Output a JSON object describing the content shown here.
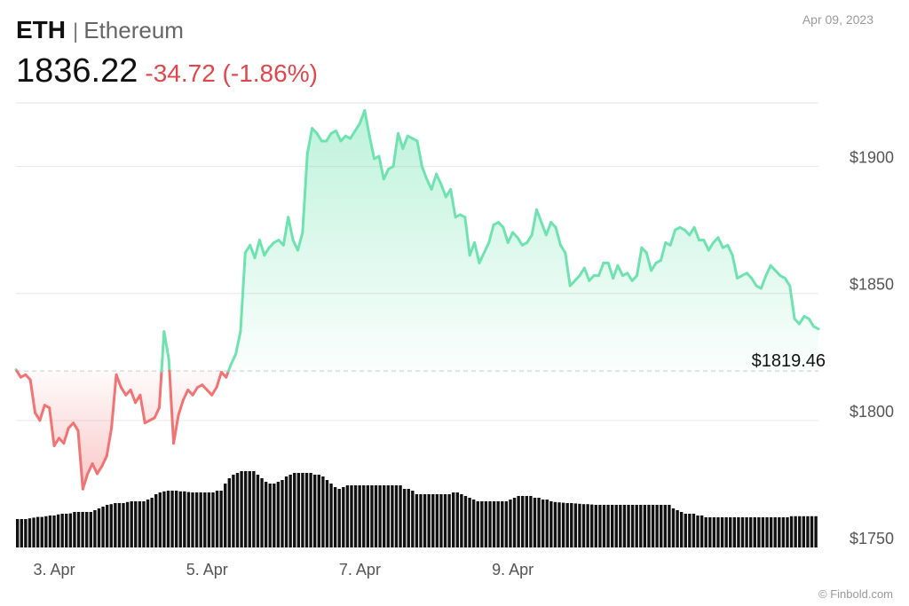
{
  "header": {
    "symbol": "ETH",
    "name": "Ethereum",
    "price": "1836.22",
    "change": "-34.72 (-1.86%)",
    "date": "Apr 09, 2023"
  },
  "credit": "© Finbold.com",
  "colors": {
    "up": "#6ee3b0",
    "down": "#f27373",
    "volume": "#111111",
    "grid": "#e6e6e6",
    "change_text": "#e0474c"
  },
  "chart_data": {
    "type": "area",
    "reference_price": 1819.46,
    "reference_label": "$1819.46",
    "ylim": [
      1750,
      1925
    ],
    "y_ticks": [
      1750,
      1800,
      1850,
      1900
    ],
    "y_tick_labels": [
      "$1750",
      "$1800",
      "$1850",
      "$1900"
    ],
    "x_tick_labels": [
      "3. Apr",
      "5. Apr",
      "7. Apr",
      "9. Apr"
    ],
    "x_tick_positions": [
      8,
      40,
      72,
      104
    ],
    "grid": true,
    "price_series": [
      1820,
      1817,
      1818,
      1816,
      1803,
      1800,
      1806,
      1805,
      1790,
      1793,
      1791,
      1797,
      1799,
      1796,
      1773,
      1779,
      1783,
      1779,
      1782,
      1786,
      1797,
      1818,
      1813,
      1810,
      1812,
      1807,
      1810,
      1799,
      1800,
      1801,
      1805,
      1835,
      1824,
      1791,
      1802,
      1808,
      1812,
      1810,
      1813,
      1814,
      1812,
      1810,
      1813,
      1819,
      1817,
      1822,
      1826,
      1835,
      1866,
      1869,
      1864,
      1871,
      1865,
      1868,
      1870,
      1871,
      1869,
      1880,
      1871,
      1867,
      1874,
      1905,
      1915,
      1913,
      1910,
      1910,
      1913,
      1914,
      1910,
      1912,
      1911,
      1914,
      1917,
      1922,
      1912,
      1903,
      1904,
      1895,
      1899,
      1900,
      1913,
      1907,
      1912,
      1911,
      1910,
      1900,
      1895,
      1891,
      1897,
      1893,
      1888,
      1891,
      1880,
      1881,
      1880,
      1865,
      1870,
      1862,
      1866,
      1870,
      1877,
      1878,
      1876,
      1870,
      1874,
      1872,
      1869,
      1870,
      1873,
      1883,
      1878,
      1873,
      1878,
      1876,
      1869,
      1866,
      1853,
      1855,
      1857,
      1860,
      1855,
      1857,
      1857,
      1862,
      1862,
      1856,
      1861,
      1857,
      1858,
      1855,
      1857,
      1868,
      1866,
      1859,
      1862,
      1863,
      1870,
      1869,
      1875,
      1876,
      1875,
      1873,
      1876,
      1871,
      1871,
      1867,
      1870,
      1872,
      1868,
      1869,
      1865,
      1856,
      1857,
      1858,
      1856,
      1853,
      1852,
      1857,
      1861,
      1859,
      1857,
      1856,
      1853,
      1840,
      1838,
      1841,
      1840,
      1837,
      1836
    ],
    "volume_series": [
      8,
      8,
      8,
      8.2,
      8.4,
      8.6,
      8.6,
      8.8,
      9,
      9,
      9.3,
      9.5,
      9.5,
      9.6,
      10,
      10,
      10,
      10,
      10,
      10.5,
      11,
      11.5,
      12,
      12.2,
      12.5,
      12.5,
      12.5,
      12.8,
      13,
      13,
      13,
      13,
      13.5,
      14,
      15,
      15.5,
      15.8,
      16,
      16,
      16,
      15.8,
      15.8,
      15.6,
      15.5,
      15.5,
      15.5,
      15.5,
      15.5,
      15.5,
      16,
      16,
      18,
      19.5,
      20.5,
      21,
      21.5,
      21.5,
      21.5,
      21.5,
      20.5,
      19.5,
      18.5,
      18,
      18,
      18.5,
      19,
      20,
      20.5,
      21,
      21,
      21,
      21,
      21,
      20.5,
      20.5,
      20,
      19,
      18,
      17,
      16.5,
      17,
      17.5,
      17.5,
      17.5,
      17.5,
      17.5,
      17.5,
      17.5,
      17.5,
      17.5,
      17.5,
      17.5,
      17.5,
      17.5,
      17.5,
      16.5,
      16.5,
      16,
      15,
      15,
      15,
      15,
      15,
      15,
      15,
      15,
      15,
      15.5,
      15.5,
      15,
      14.5,
      14,
      13.5,
      13,
      13,
      13,
      13,
      13,
      13,
      13,
      13,
      13.5,
      14,
      14.5,
      14.5,
      14.5,
      14.5,
      14,
      14,
      13.5,
      13.5,
      13,
      12.8,
      12.7,
      12.6,
      12.5,
      12.5,
      12.4,
      12.3,
      12.2,
      12.2,
      12.1,
      12,
      12,
      12,
      12,
      12,
      12,
      12,
      12,
      12,
      12,
      12,
      12,
      12,
      12,
      12,
      12,
      12,
      12,
      12,
      11,
      10.5,
      10,
      9.5,
      9.5,
      9.5,
      9,
      9,
      8.5,
      8.5,
      8.5,
      8.5,
      8.5,
      8.5,
      8.5,
      8.5,
      8.5,
      8.5,
      8.5,
      8.5,
      8.5,
      8.5,
      8.5,
      8.5,
      8.5,
      8.5,
      8.5,
      8.5,
      8.5,
      8.8,
      8.8,
      8.8,
      8.8,
      8.8,
      8.8,
      8.8
    ]
  }
}
